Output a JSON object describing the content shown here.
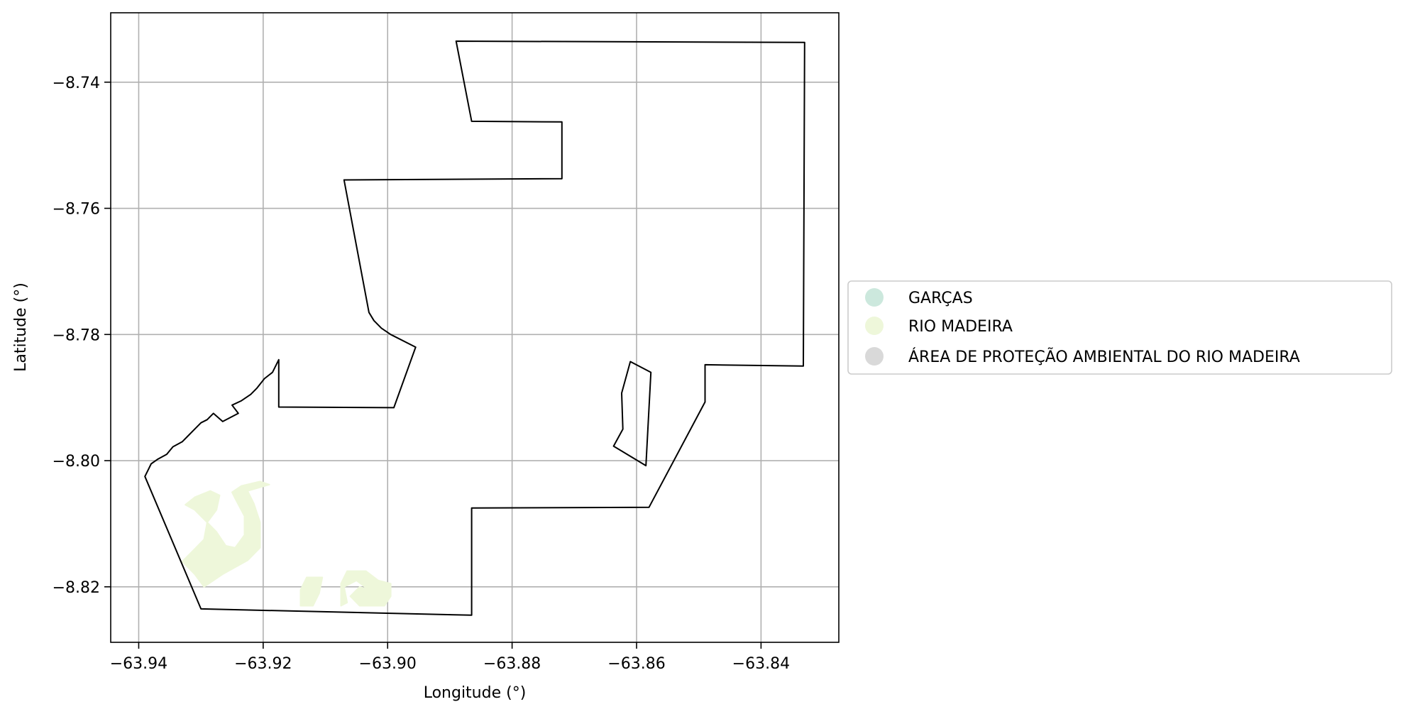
{
  "chart_data": {
    "type": "map",
    "xlabel": "Longitude (°)",
    "ylabel": "Latitude (°)",
    "xlim": [
      -63.9445,
      -63.8275
    ],
    "ylim": [
      -8.8288,
      -8.729
    ],
    "grid": true,
    "x_ticks": [
      -63.94,
      -63.92,
      -63.9,
      -63.88,
      -63.86,
      -63.84
    ],
    "y_ticks": [
      -8.74,
      -8.76,
      -8.78,
      -8.8,
      -8.82
    ],
    "x_tick_labels": [
      "−63.94",
      "−63.92",
      "−63.90",
      "−63.88",
      "−63.86",
      "−63.84"
    ],
    "y_tick_labels": [
      "−8.74",
      "−8.76",
      "−8.78",
      "−8.80",
      "−8.82"
    ],
    "legend": {
      "placement": "center-right-outside",
      "entries": [
        {
          "label": "GARÇAS",
          "color": "#cce8dd"
        },
        {
          "label": "RIO MADEIRA",
          "color": "#eef7da"
        },
        {
          "label": "ÁREA DE PROTEÇÃO AMBIENTAL DO RIO MADEIRA",
          "color": "#d9d9d9"
        }
      ]
    },
    "boundary": {
      "stroke": "#000000",
      "main": [
        [
          -63.889,
          -8.7335
        ],
        [
          -63.833,
          -8.7337
        ],
        [
          -63.8332,
          -8.785
        ],
        [
          -63.849,
          -8.7848
        ],
        [
          -63.849,
          -8.7907
        ],
        [
          -63.858,
          -8.8074
        ],
        [
          -63.8865,
          -8.8075
        ],
        [
          -63.8865,
          -8.8245
        ],
        [
          -63.93,
          -8.8235
        ],
        [
          -63.939,
          -8.8025
        ],
        [
          -63.9385,
          -8.8015
        ],
        [
          -63.938,
          -8.8005
        ],
        [
          -63.937,
          -8.7998
        ],
        [
          -63.9355,
          -8.799
        ],
        [
          -63.9345,
          -8.7978
        ],
        [
          -63.933,
          -8.797
        ],
        [
          -63.932,
          -8.796
        ],
        [
          -63.931,
          -8.795
        ],
        [
          -63.93,
          -8.794
        ],
        [
          -63.929,
          -8.7935
        ],
        [
          -63.928,
          -8.7925
        ],
        [
          -63.9265,
          -8.7938
        ],
        [
          -63.924,
          -8.7925
        ],
        [
          -63.925,
          -8.7912
        ],
        [
          -63.9235,
          -8.7905
        ],
        [
          -63.922,
          -8.7895
        ],
        [
          -63.921,
          -8.7885
        ],
        [
          -63.9198,
          -8.787
        ],
        [
          -63.9185,
          -8.786
        ],
        [
          -63.9175,
          -8.784
        ],
        [
          -63.9175,
          -8.7915
        ],
        [
          -63.899,
          -8.7916
        ],
        [
          -63.8955,
          -8.782
        ],
        [
          -63.8995,
          -8.78
        ],
        [
          -63.901,
          -8.779
        ],
        [
          -63.9022,
          -8.7778
        ],
        [
          -63.903,
          -8.7765
        ],
        [
          -63.907,
          -8.7555
        ],
        [
          -63.872,
          -8.7553
        ],
        [
          -63.872,
          -8.7463
        ],
        [
          -63.8865,
          -8.7462
        ],
        [
          -63.889,
          -8.7335
        ]
      ],
      "inner": [
        [
          -63.861,
          -8.7843
        ],
        [
          -63.8577,
          -8.786
        ],
        [
          -63.8585,
          -8.8008
        ],
        [
          -63.8637,
          -8.7977
        ],
        [
          -63.8622,
          -8.795
        ],
        [
          -63.8624,
          -8.7893
        ],
        [
          -63.861,
          -8.7843
        ]
      ]
    },
    "rio_madeira_patches": [
      [
        [
          -63.9205,
          -8.8033
        ],
        [
          -63.919,
          -8.8038
        ],
        [
          -63.9225,
          -8.8048
        ],
        [
          -63.9215,
          -8.8068
        ],
        [
          -63.9205,
          -8.8098
        ],
        [
          -63.9205,
          -8.8138
        ],
        [
          -63.9225,
          -8.8158
        ],
        [
          -63.9265,
          -8.818
        ],
        [
          -63.9295,
          -8.82
        ],
        [
          -63.931,
          -8.818
        ],
        [
          -63.933,
          -8.816
        ],
        [
          -63.931,
          -8.814
        ],
        [
          -63.9295,
          -8.8125
        ],
        [
          -63.929,
          -8.8098
        ],
        [
          -63.9275,
          -8.8078
        ],
        [
          -63.927,
          -8.8055
        ],
        [
          -63.9285,
          -8.8048
        ],
        [
          -63.931,
          -8.8058
        ],
        [
          -63.9325,
          -8.807
        ],
        [
          -63.931,
          -8.8078
        ],
        [
          -63.929,
          -8.8098
        ],
        [
          -63.9275,
          -8.8113
        ],
        [
          -63.926,
          -8.8135
        ],
        [
          -63.9245,
          -8.8138
        ],
        [
          -63.923,
          -8.8118
        ],
        [
          -63.923,
          -8.8088
        ],
        [
          -63.9245,
          -8.806
        ],
        [
          -63.925,
          -8.805
        ],
        [
          -63.9235,
          -8.804
        ],
        [
          -63.9205,
          -8.8033
        ]
      ],
      [
        [
          -63.912,
          -8.823
        ],
        [
          -63.911,
          -8.821
        ],
        [
          -63.9105,
          -8.8185
        ],
        [
          -63.913,
          -8.8185
        ],
        [
          -63.914,
          -8.8205
        ],
        [
          -63.914,
          -8.823
        ],
        [
          -63.912,
          -8.823
        ]
      ],
      [
        [
          -63.9075,
          -8.823
        ],
        [
          -63.9075,
          -8.8195
        ],
        [
          -63.9065,
          -8.8175
        ],
        [
          -63.9035,
          -8.8175
        ],
        [
          -63.9015,
          -8.819
        ],
        [
          -63.8995,
          -8.8195
        ],
        [
          -63.8995,
          -8.8215
        ],
        [
          -63.9005,
          -8.823
        ],
        [
          -63.9045,
          -8.823
        ],
        [
          -63.906,
          -8.8215
        ],
        [
          -63.9045,
          -8.82
        ],
        [
          -63.903,
          -8.8205
        ],
        [
          -63.905,
          -8.819
        ],
        [
          -63.907,
          -8.82
        ],
        [
          -63.9065,
          -8.8225
        ],
        [
          -63.9075,
          -8.823
        ]
      ]
    ]
  }
}
